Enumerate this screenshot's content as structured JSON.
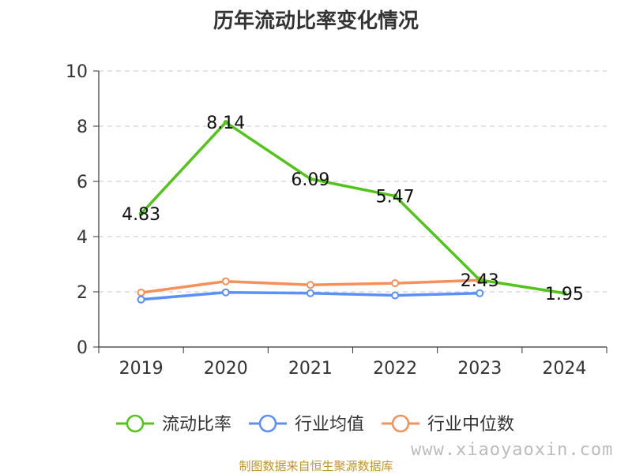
{
  "chart_data": {
    "type": "line",
    "title": "历年流动比率变化情况",
    "categories": [
      "2019",
      "2020",
      "2021",
      "2022",
      "2023",
      "2024"
    ],
    "ylim": [
      0,
      10
    ],
    "yticks": [
      0,
      2,
      4,
      6,
      8,
      10
    ],
    "grid": true,
    "legend_position": "bottom",
    "series": [
      {
        "name": "流动比率",
        "color": "#52c41a",
        "values": [
          4.83,
          8.14,
          6.09,
          5.47,
          2.43,
          1.95
        ],
        "show_labels": true,
        "labels": [
          "4.83",
          "8.14",
          "6.09",
          "5.47",
          "2.43",
          "1.95"
        ]
      },
      {
        "name": "行业均值",
        "color": "#5b8ff9",
        "values": [
          1.72,
          1.98,
          1.95,
          1.87,
          1.95,
          null
        ]
      },
      {
        "name": "行业中位数",
        "color": "#f6905b",
        "values": [
          1.97,
          2.38,
          2.25,
          2.31,
          2.42,
          null
        ]
      }
    ]
  },
  "footer": {
    "source": "制图数据来自恒生聚源数据库",
    "watermark": "www.xiaoyaoxin.com"
  }
}
